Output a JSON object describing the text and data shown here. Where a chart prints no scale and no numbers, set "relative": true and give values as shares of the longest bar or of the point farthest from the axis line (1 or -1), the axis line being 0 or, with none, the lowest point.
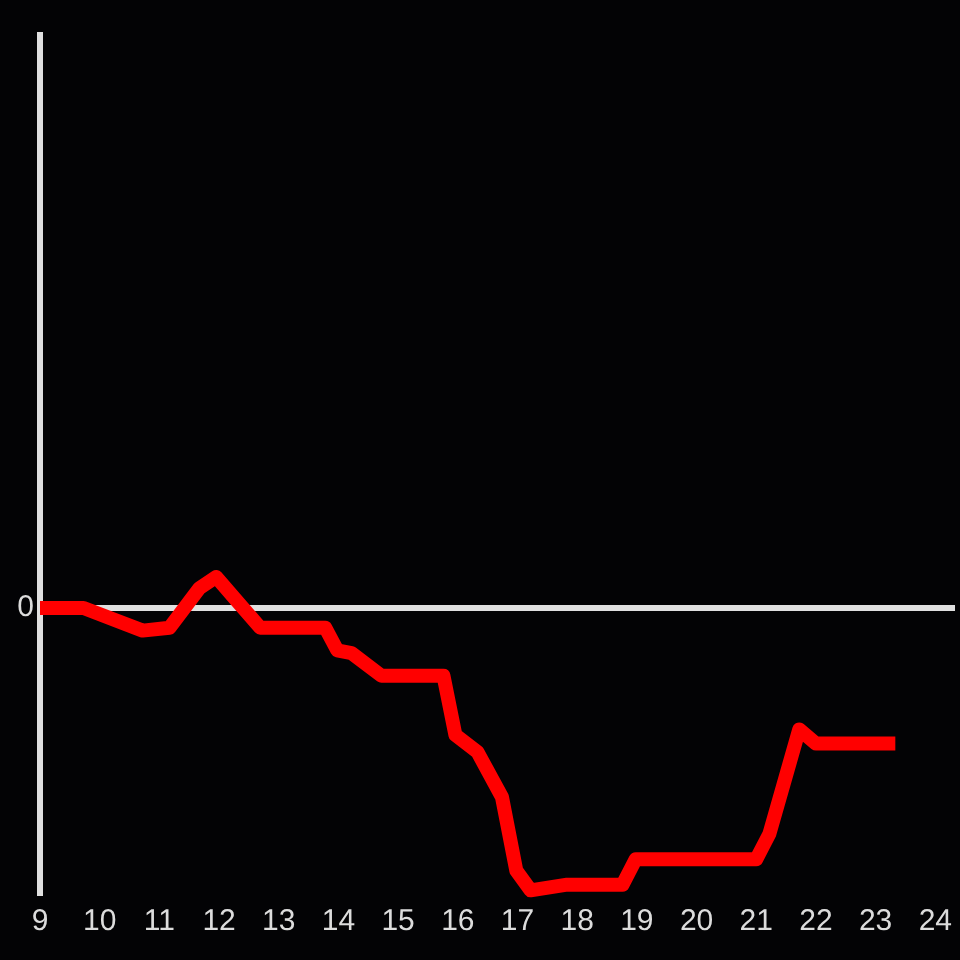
{
  "chart_data": {
    "type": "line",
    "relative": true,
    "marker": "none",
    "line_style": "solid",
    "x": [
      9,
      9.73,
      10.72,
      11.17,
      11.67,
      11.95,
      12.28,
      12.69,
      13.78,
      13.98,
      14.22,
      14.72,
      15.76,
      15.96,
      16.33,
      16.74,
      16.98,
      17.22,
      17.83,
      18.76,
      18.98,
      21.0,
      21.22,
      21.72,
      22.0,
      23.33
    ],
    "series": [
      {
        "color": "#ff0000",
        "values": [
          0,
          0,
          -0.08,
          -0.07,
          0.07,
          0.11,
          0.03,
          -0.07,
          -0.07,
          -0.15,
          -0.16,
          -0.24,
          -0.24,
          -0.45,
          -0.51,
          -0.67,
          -0.93,
          -1,
          -0.98,
          -0.98,
          -0.89,
          -0.89,
          -0.8,
          -0.43,
          -0.48,
          -0.48
        ]
      }
    ],
    "xlim": [
      9,
      24.33
    ],
    "xticks": [
      9,
      10,
      11,
      12,
      13,
      14,
      15,
      16,
      17,
      18,
      19,
      20,
      21,
      22,
      23,
      24
    ],
    "ref_lines": [
      {
        "axis": "y",
        "value": 0,
        "label": "0",
        "color": "#e0e0e0"
      }
    ]
  }
}
